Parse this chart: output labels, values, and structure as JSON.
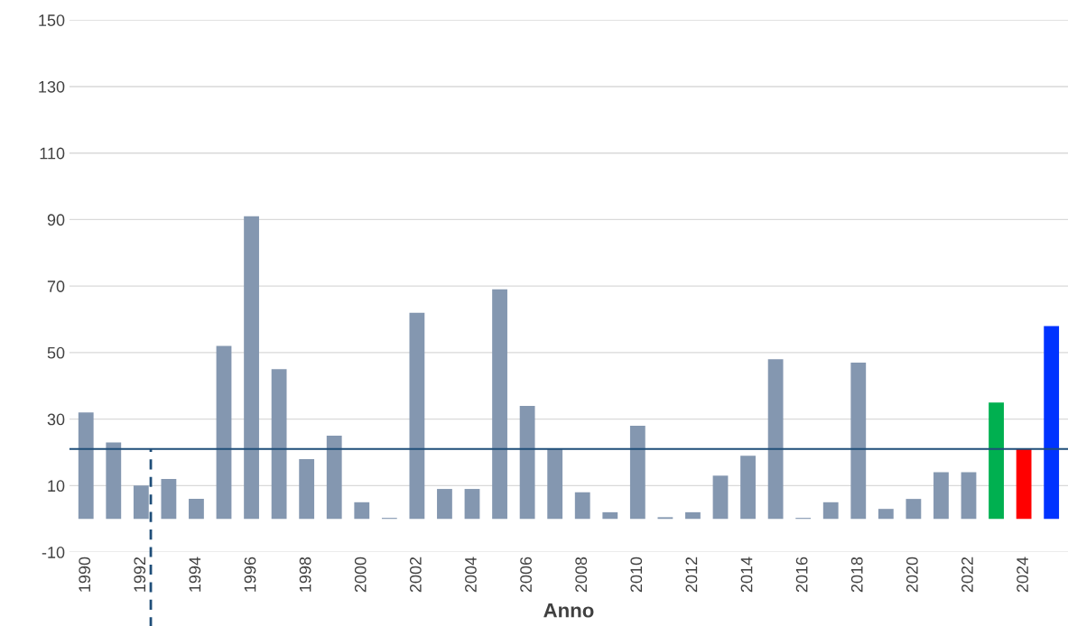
{
  "chart_data": {
    "type": "bar",
    "xlabel": "Anno",
    "categories": [
      "1990",
      null,
      "1992",
      null,
      "1994",
      null,
      "1996",
      null,
      "1998",
      null,
      "2000",
      null,
      "2002",
      null,
      "2004",
      null,
      "2006",
      null,
      "2008",
      null,
      "2010",
      null,
      "2012",
      null,
      "2014",
      null,
      "2016",
      null,
      "2018",
      null,
      "2020",
      null,
      "2022",
      null,
      "2024",
      null
    ],
    "values": [
      32,
      23,
      10,
      12,
      6,
      52,
      91,
      45,
      18,
      25,
      5,
      0.3,
      62,
      9,
      9,
      69,
      34,
      21,
      8,
      2,
      28,
      0.5,
      2,
      13,
      19,
      48,
      0.3,
      5,
      47,
      3,
      6,
      14,
      14,
      35,
      21,
      58
    ],
    "colors": [
      "#8497b0",
      "#8497b0",
      "#8497b0",
      "#8497b0",
      "#8497b0",
      "#8497b0",
      "#8497b0",
      "#8497b0",
      "#8497b0",
      "#8497b0",
      "#8497b0",
      "#8497b0",
      "#8497b0",
      "#8497b0",
      "#8497b0",
      "#8497b0",
      "#8497b0",
      "#8497b0",
      "#8497b0",
      "#8497b0",
      "#8497b0",
      "#8497b0",
      "#8497b0",
      "#8497b0",
      "#8497b0",
      "#8497b0",
      "#8497b0",
      "#8497b0",
      "#8497b0",
      "#8497b0",
      "#8497b0",
      "#8497b0",
      "#8497b0",
      "#00b050",
      "#ff0000",
      "#0033ff"
    ],
    "ylim": [
      -10,
      150
    ],
    "yticks": [
      -10,
      10,
      30,
      50,
      70,
      90,
      110,
      130,
      150
    ],
    "grid": "y",
    "ref_lines": [
      {
        "axis": "y",
        "value": 21,
        "color": "#1f4e79",
        "line_style": "solid"
      },
      {
        "axis": "x",
        "value": "1992",
        "color": "#1f4e79",
        "line_style": "dashed"
      }
    ]
  }
}
